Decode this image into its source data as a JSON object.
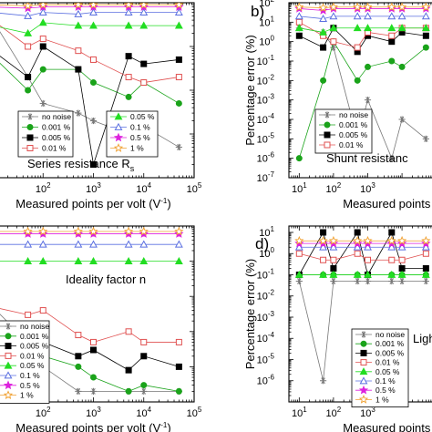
{
  "colors": {
    "no noise": "#777777",
    "0.001 %": "#1aa31a",
    "0.005 %": "#000000",
    "0.01 %": "#e05050",
    "0.05 %": "#22dd22",
    "0.1 %": "#5a6fe0",
    "0.5 %": "#dd22dd",
    "1 %": "#f0a030"
  },
  "markers": {
    "no noise": "asterisk",
    "0.001 %": "circle",
    "0.005 %": "square",
    "0.01 %": "square-open",
    "0.05 %": "triangle",
    "0.1 %": "triangle-open",
    "0.5 %": "star",
    "1 %": "star-open"
  },
  "chart_data": [
    {
      "panel": "a",
      "type": "line",
      "note": "Series resistance R",
      "note_sub": "s",
      "xlabel": "Measured points per volt (V",
      "xlabel_sup": "-1",
      "xlabel_end": ")",
      "ylabel": "",
      "xscale": "log",
      "yscale": "log",
      "xlim": [
        10,
        100000
      ],
      "ylim": [
        0.01,
        100
      ],
      "x_ticks": [
        "10",
        "10",
        "10",
        "10",
        "10"
      ],
      "x_tick_sup": [
        "1",
        "2",
        "3",
        "4",
        "5"
      ],
      "legend_placement": "bottom",
      "x": [
        10,
        50,
        100,
        500,
        1000,
        5000,
        10000,
        50000
      ],
      "series": [
        {
          "name": "no noise",
          "values": [
            40,
            2,
            0.5,
            0.3,
            0.2,
            0.1,
            0.15,
            0.05
          ]
        },
        {
          "name": "0.001 %",
          "values": [
            6,
            1,
            3,
            3,
            1.5,
            0.7,
            1.5,
            0.5
          ]
        },
        {
          "name": "0.005 %",
          "values": [
            8,
            2,
            10,
            3,
            0.02,
            6,
            4,
            5
          ]
        },
        {
          "name": "0.01 %",
          "values": [
            40,
            10,
            15,
            8,
            5,
            2,
            1.5,
            2
          ]
        },
        {
          "name": "0.05 %",
          "values": [
            30,
            20,
            35,
            30,
            30,
            30,
            30,
            30
          ]
        },
        {
          "name": "0.1 %",
          "values": [
            60,
            50,
            60,
            55,
            60,
            60,
            60,
            60
          ]
        },
        {
          "name": "0.5 %",
          "values": [
            80,
            75,
            80,
            80,
            80,
            80,
            80,
            80
          ]
        },
        {
          "name": "1 %",
          "values": [
            90,
            85,
            90,
            90,
            90,
            90,
            90,
            90
          ]
        }
      ]
    },
    {
      "panel": "b",
      "type": "line",
      "note": "Shunt resistanc",
      "note_sub": "",
      "xlabel": "Measured points per",
      "xlabel_sup": "",
      "xlabel_end": "",
      "ylabel": "Percentage error (%)",
      "xscale": "log",
      "yscale": "log",
      "xlim": [
        5,
        200000
      ],
      "ylim": [
        1e-07,
        100
      ],
      "y_ticks": [
        "10",
        "10",
        "10",
        "10",
        "10",
        "10",
        "10",
        "10",
        "10",
        "10"
      ],
      "y_tick_sup": [
        "-7",
        "-6",
        "-5",
        "-4",
        "-3",
        "-2",
        "-1",
        "0",
        "1",
        "2"
      ],
      "x_ticks": [
        "10",
        "10",
        "10"
      ],
      "x_tick_sup": [
        "1",
        "2",
        "3"
      ],
      "legend_placement": "left",
      "x": [
        10,
        50,
        100,
        500,
        1000,
        5000,
        10000,
        50000
      ],
      "series": [
        {
          "name": "no noise",
          "values": [
            5,
            3,
            0.5,
            1e-05,
            0.001,
            1e-06,
            0.0001,
            1e-05
          ]
        },
        {
          "name": "0.001 %",
          "values": [
            1e-06,
            0.01,
            1,
            0.01,
            0.05,
            0.1,
            0.05,
            0.5
          ]
        },
        {
          "name": "0.005 %",
          "values": [
            2,
            0.5,
            5,
            0.3,
            2,
            1,
            3,
            2
          ]
        },
        {
          "name": "0.01 %",
          "values": [
            10,
            2,
            1,
            0.5,
            3,
            2,
            5,
            5
          ]
        },
        {
          "name": "0.05 %",
          "values": [
            5,
            3,
            5,
            5,
            5,
            5,
            5,
            5
          ]
        },
        {
          "name": "0.1 %",
          "values": [
            20,
            15,
            20,
            20,
            20,
            20,
            20,
            20
          ]
        },
        {
          "name": "0.5 %",
          "values": [
            50,
            40,
            50,
            50,
            50,
            50,
            50,
            50
          ]
        },
        {
          "name": "1 %",
          "values": [
            60,
            55,
            60,
            60,
            60,
            60,
            60,
            60
          ]
        }
      ]
    },
    {
      "panel": "c",
      "type": "line",
      "note": "Ideality factor n",
      "note_sub": "",
      "xlabel": "Measured points per volt (V",
      "xlabel_sup": "-1",
      "xlabel_end": ")",
      "ylabel": "",
      "xscale": "log",
      "yscale": "log",
      "xlim": [
        10,
        100000
      ],
      "ylim": [
        0.0001,
        10
      ],
      "x_ticks": [
        "10",
        "10",
        "10",
        "10",
        "10"
      ],
      "x_tick_sup": [
        "1",
        "2",
        "3",
        "4",
        "5"
      ],
      "legend_placement": "left",
      "x": [
        10,
        50,
        100,
        500,
        1000,
        5000,
        10000,
        50000
      ],
      "series": [
        {
          "name": "no noise",
          "values": [
            0.05,
            0.005,
            0.001,
            0.0002,
            0.0002,
            0.0002,
            0.0002,
            0.0002
          ]
        },
        {
          "name": "0.001 %",
          "values": [
            0.02,
            0.01,
            0.002,
            0.001,
            0.0005,
            0.0002,
            0.0003,
            0.0002
          ]
        },
        {
          "name": "0.005 %",
          "values": [
            0.02,
            0.005,
            0.005,
            0.002,
            0.003,
            0.0008,
            0.002,
            0.001
          ]
        },
        {
          "name": "0.01 %",
          "values": [
            0.05,
            0.03,
            0.04,
            0.008,
            0.005,
            0.01,
            0.005,
            0.005
          ]
        },
        {
          "name": "0.05 %",
          "values": [
            1,
            1,
            1,
            1,
            1,
            1,
            1,
            1
          ]
        },
        {
          "name": "0.1 %",
          "values": [
            3,
            3,
            3,
            3,
            3,
            3,
            3,
            3
          ]
        },
        {
          "name": "0.5 %",
          "values": [
            6,
            6,
            6,
            6,
            6,
            6,
            6,
            6
          ]
        },
        {
          "name": "1 %",
          "values": [
            7,
            7,
            7,
            7,
            7,
            7,
            7,
            7
          ]
        }
      ]
    },
    {
      "panel": "d",
      "type": "line",
      "note": "Ligh",
      "note_sub": "",
      "xlabel": "Measured points per",
      "xlabel_sup": "",
      "xlabel_end": "",
      "ylabel": "Percentage error (%)",
      "xscale": "log",
      "yscale": "log",
      "xlim": [
        5,
        200000
      ],
      "ylim": [
        1e-07,
        20
      ],
      "y_ticks": [
        "10",
        "10",
        "10",
        "10",
        "10",
        "10",
        "10",
        "10"
      ],
      "y_tick_sup": [
        "-6",
        "-5",
        "-4",
        "-3",
        "-2",
        "-1",
        "0",
        "1"
      ],
      "x_ticks": [
        "10",
        "10",
        "10"
      ],
      "x_tick_sup": [
        "1",
        "2",
        "3"
      ],
      "legend_placement": "left",
      "x": [
        10,
        50,
        100,
        500,
        1000,
        5000,
        10000,
        50000
      ],
      "series": [
        {
          "name": "no noise",
          "values": [
            0.05,
            1e-06,
            0.05,
            0.05,
            0.05,
            0.05,
            0.05,
            0.05
          ]
        },
        {
          "name": "0.001 %",
          "values": [
            0.1,
            0.1,
            0.1,
            0.1,
            0.1,
            0.1,
            0.1,
            0.1
          ]
        },
        {
          "name": "0.005 %",
          "values": [
            0.1,
            10,
            0.2,
            10,
            0.1,
            10,
            0.2,
            0.2
          ]
        },
        {
          "name": "0.01 %",
          "values": [
            1,
            0.5,
            0.5,
            1,
            0.5,
            0.5,
            0.5,
            1
          ]
        },
        {
          "name": "0.05 %",
          "values": [
            0.1,
            0.1,
            0.1,
            0.1,
            0.1,
            0.1,
            0.1,
            0.1
          ]
        },
        {
          "name": "0.1 %",
          "values": [
            2,
            2,
            2,
            2,
            2,
            2,
            2,
            2
          ]
        },
        {
          "name": "0.5 %",
          "values": [
            3,
            3,
            3,
            3,
            3,
            3,
            3,
            3
          ]
        },
        {
          "name": "1 %",
          "values": [
            4,
            4,
            4,
            4,
            4,
            4,
            4,
            4
          ]
        }
      ]
    }
  ],
  "legends": {
    "a_left": [
      "no noise",
      "0.001 %",
      "0.005 %",
      "0.01 %"
    ],
    "a_right": [
      "0.05 %",
      "0.1 %",
      "0.5 %",
      "1 %"
    ],
    "b": [
      "no noise",
      "0.001 %",
      "0.005 %",
      "0.01 %"
    ],
    "c": [
      "no noise",
      "0.001 %",
      "0.005 %",
      "0.01 %",
      "0.05 %",
      "0.1 %",
      "0.5 %",
      "1 %"
    ],
    "d": [
      "no noise",
      "0.001 %",
      "0.005 %",
      "0.01 %",
      "0.05 %",
      "0.1 %",
      "0.5 %",
      "1 %"
    ]
  },
  "panel_labels": {
    "b": "b)",
    "d": "d)"
  }
}
